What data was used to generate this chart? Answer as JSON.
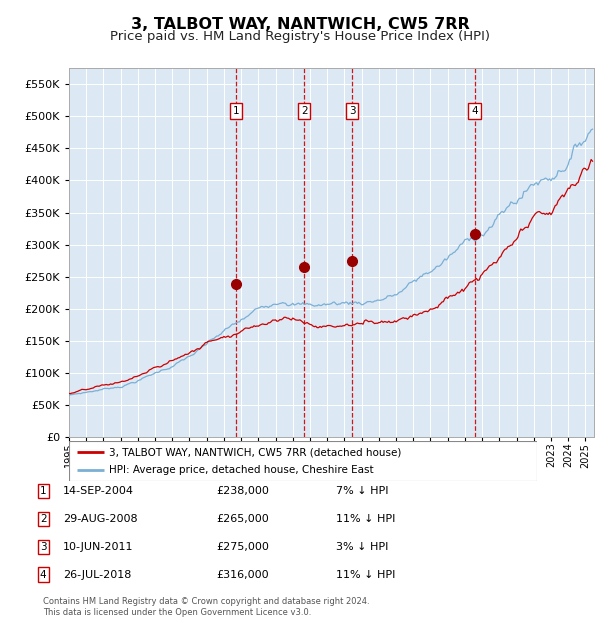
{
  "title": "3, TALBOT WAY, NANTWICH, CW5 7RR",
  "subtitle": "Price paid vs. HM Land Registry's House Price Index (HPI)",
  "title_fontsize": 11.5,
  "subtitle_fontsize": 9.5,
  "background_color": "#ffffff",
  "plot_bg_color": "#dce9f5",
  "grid_color": "#ffffff",
  "hpi_line_color": "#7bafd4",
  "price_line_color": "#cc0000",
  "marker_color": "#990000",
  "vline_color_red": "#cc0000",
  "ylim": [
    0,
    575000
  ],
  "yticks": [
    0,
    50000,
    100000,
    150000,
    200000,
    250000,
    300000,
    350000,
    400000,
    450000,
    500000,
    550000
  ],
  "xlim_start": 1995.0,
  "xlim_end": 2025.5,
  "purchases": [
    {
      "num": 1,
      "date": "14-SEP-2004",
      "year": 2004.71,
      "price": 238000,
      "hpi_pct": "7%"
    },
    {
      "num": 2,
      "date": "29-AUG-2008",
      "year": 2008.66,
      "price": 265000,
      "hpi_pct": "11%"
    },
    {
      "num": 3,
      "date": "10-JUN-2011",
      "year": 2011.44,
      "price": 275000,
      "hpi_pct": "3%"
    },
    {
      "num": 4,
      "date": "26-JUL-2018",
      "year": 2018.57,
      "price": 316000,
      "hpi_pct": "11%"
    }
  ],
  "legend_label_price": "3, TALBOT WAY, NANTWICH, CW5 7RR (detached house)",
  "legend_label_hpi": "HPI: Average price, detached house, Cheshire East",
  "footer_text": "Contains HM Land Registry data © Crown copyright and database right 2024.\nThis data is licensed under the Open Government Licence v3.0.",
  "table_rows": [
    [
      "1",
      "14-SEP-2004",
      "£238,000",
      "7% ↓ HPI"
    ],
    [
      "2",
      "29-AUG-2008",
      "£265,000",
      "11% ↓ HPI"
    ],
    [
      "3",
      "10-JUN-2011",
      "£275,000",
      "3% ↓ HPI"
    ],
    [
      "4",
      "26-JUL-2018",
      "£316,000",
      "11% ↓ HPI"
    ]
  ]
}
